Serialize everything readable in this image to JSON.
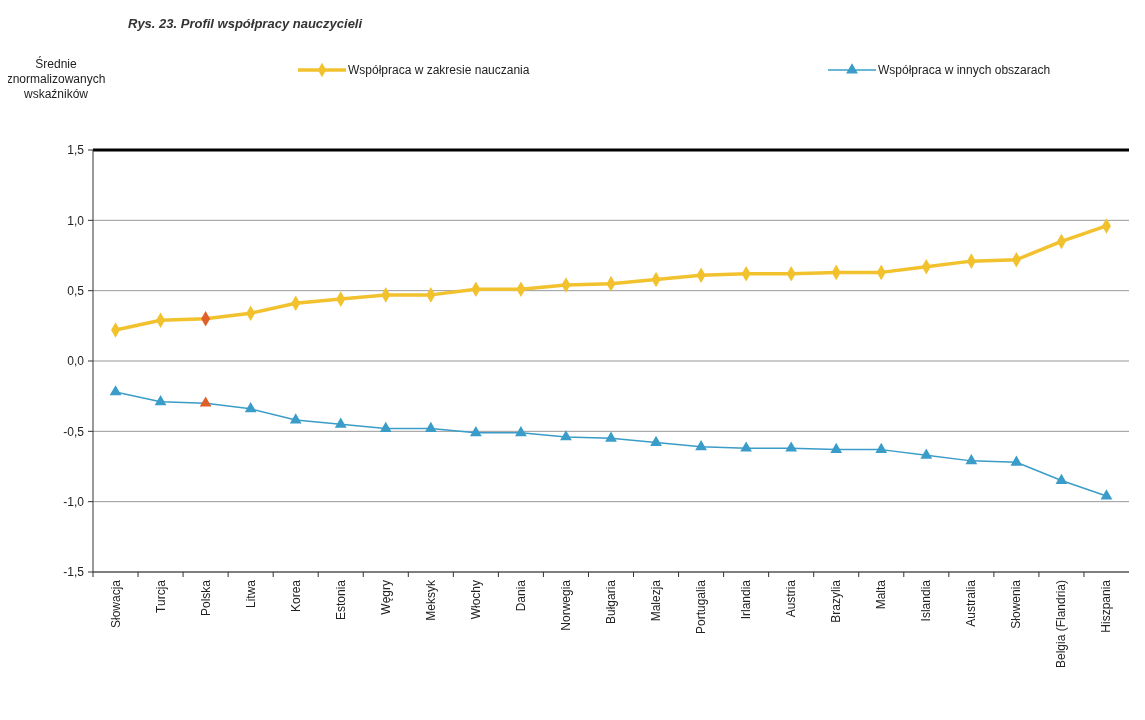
{
  "chart_data": {
    "type": "line",
    "title": "Rys. 23. Profil współpracy nauczycieli",
    "ylabel": "Średnie znormalizowanych wskaźników",
    "categories": [
      "Słowacja",
      "Turcja",
      "Polska",
      "Litwa",
      "Korea",
      "Estonia",
      "Węgry",
      "Meksyk",
      "Włochy",
      "Dania",
      "Norwegia",
      "Bułgaria",
      "Malezja",
      "Portugalia",
      "Irlandia",
      "Austria",
      "Brazylia",
      "Malta",
      "Islandia",
      "Australia",
      "Słowenia",
      "Belgia (Flandria)",
      "Hiszpania"
    ],
    "series": [
      {
        "name": "Współpraca w zakresie nauczania",
        "color": "#f2c12e",
        "marker": "diamond",
        "colors": [
          "#f2c12e",
          "#f2c12e",
          "#e0602a",
          "#f2c12e",
          "#f2c12e",
          "#f2c12e",
          "#f2c12e",
          "#f2c12e",
          "#f2c12e",
          "#f2c12e",
          "#f2c12e",
          "#f2c12e",
          "#f2c12e",
          "#f2c12e",
          "#f2c12e",
          "#f2c12e",
          "#f2c12e",
          "#f2c12e",
          "#f2c12e",
          "#f2c12e",
          "#f2c12e",
          "#f2c12e",
          "#f2c12e"
        ],
        "values": [
          0.22,
          0.29,
          0.3,
          0.34,
          0.41,
          0.44,
          0.47,
          0.47,
          0.51,
          0.51,
          0.54,
          0.55,
          0.58,
          0.61,
          0.62,
          0.62,
          0.63,
          0.63,
          0.67,
          0.71,
          0.72,
          0.85,
          0.96
        ]
      },
      {
        "name": "Współpraca w innych obszarach",
        "color": "#3a9cc8",
        "marker": "triangle",
        "colors": [
          "#3a9cc8",
          "#3a9cc8",
          "#e0602a",
          "#3a9cc8",
          "#3a9cc8",
          "#3a9cc8",
          "#3a9cc8",
          "#3a9cc8",
          "#3a9cc8",
          "#3a9cc8",
          "#3a9cc8",
          "#3a9cc8",
          "#3a9cc8",
          "#3a9cc8",
          "#3a9cc8",
          "#3a9cc8",
          "#3a9cc8",
          "#3a9cc8",
          "#3a9cc8",
          "#3a9cc8",
          "#3a9cc8",
          "#3a9cc8",
          "#3a9cc8"
        ],
        "values": [
          -0.22,
          -0.29,
          -0.3,
          -0.34,
          -0.42,
          -0.45,
          -0.48,
          -0.48,
          -0.51,
          -0.51,
          -0.54,
          -0.55,
          -0.58,
          -0.61,
          -0.62,
          -0.62,
          -0.63,
          -0.63,
          -0.67,
          -0.71,
          -0.72,
          -0.85,
          -0.96
        ]
      }
    ],
    "ylim": [
      -1.5,
      1.5
    ],
    "yticks": [
      {
        "value": -1.5,
        "label": "-1,5"
      },
      {
        "value": -1,
        "label": "-1,0"
      },
      {
        "value": -0.5,
        "label": "-0,5"
      },
      {
        "value": 0,
        "label": "0,0"
      },
      {
        "value": 0.5,
        "label": "0,5"
      },
      {
        "value": 1,
        "label": "1,0"
      },
      {
        "value": 1.5,
        "label": "1,5"
      }
    ],
    "grid": "y",
    "legend": "top"
  }
}
